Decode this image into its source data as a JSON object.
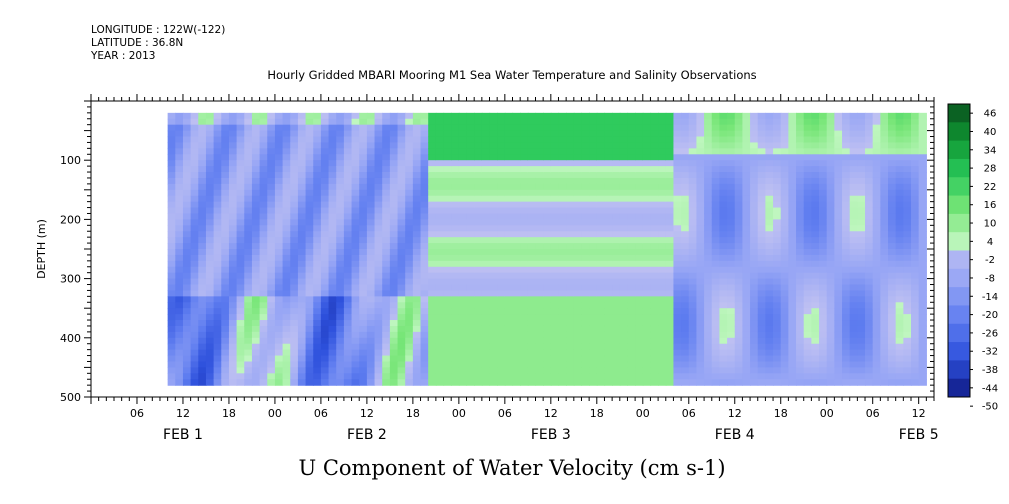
{
  "header": {
    "longitude": "LONGITUDE : 122W(-122)",
    "latitude": "LATITUDE : 36.8N",
    "year": "YEAR : 2013"
  },
  "colors": {
    "positive_light": "#b7f3b7",
    "positive_mid": "#4fdc6a",
    "positive_dark": "#0f4f1e",
    "negative_light": "#b9bcf2",
    "negative_mid": "#5b7cf0",
    "negative_dark": "#0c1a7a"
  },
  "chart_data": {
    "type": "heatmap",
    "title": "Hourly Gridded MBARI Mooring M1 Sea Water Temperature and Salinity Observations",
    "xlabel": "U Component of Water Velocity (cm s-1)",
    "ylabel": "DEPTH (m)",
    "y_ticks": [
      "100",
      "200",
      "300",
      "400",
      "500"
    ],
    "y_tick_values": [
      100,
      200,
      300,
      400,
      500
    ],
    "ylim": [
      500,
      0
    ],
    "x_hour_ticks": [
      "06",
      "12",
      "18",
      "00",
      "06",
      "12",
      "18",
      "00",
      "06",
      "12",
      "18",
      "00",
      "06",
      "12",
      "18",
      "00",
      "06",
      "12"
    ],
    "x_day_labels": [
      "FEB 1",
      "FEB 2",
      "FEB 3",
      "FEB 4",
      "FEB 5"
    ],
    "x_range_hours": [
      0,
      110
    ],
    "data_start_hour": 10,
    "data_end_hour": 109,
    "depth_range": [
      20,
      480
    ],
    "colorbar": {
      "levels": [
        "46",
        "40",
        "34",
        "28",
        "22",
        "16",
        "10",
        "4",
        "-2",
        "-8",
        "-14",
        "-20",
        "-26",
        "-32",
        "-38",
        "-44",
        "-50"
      ],
      "min": -50,
      "max": 46
    }
  }
}
